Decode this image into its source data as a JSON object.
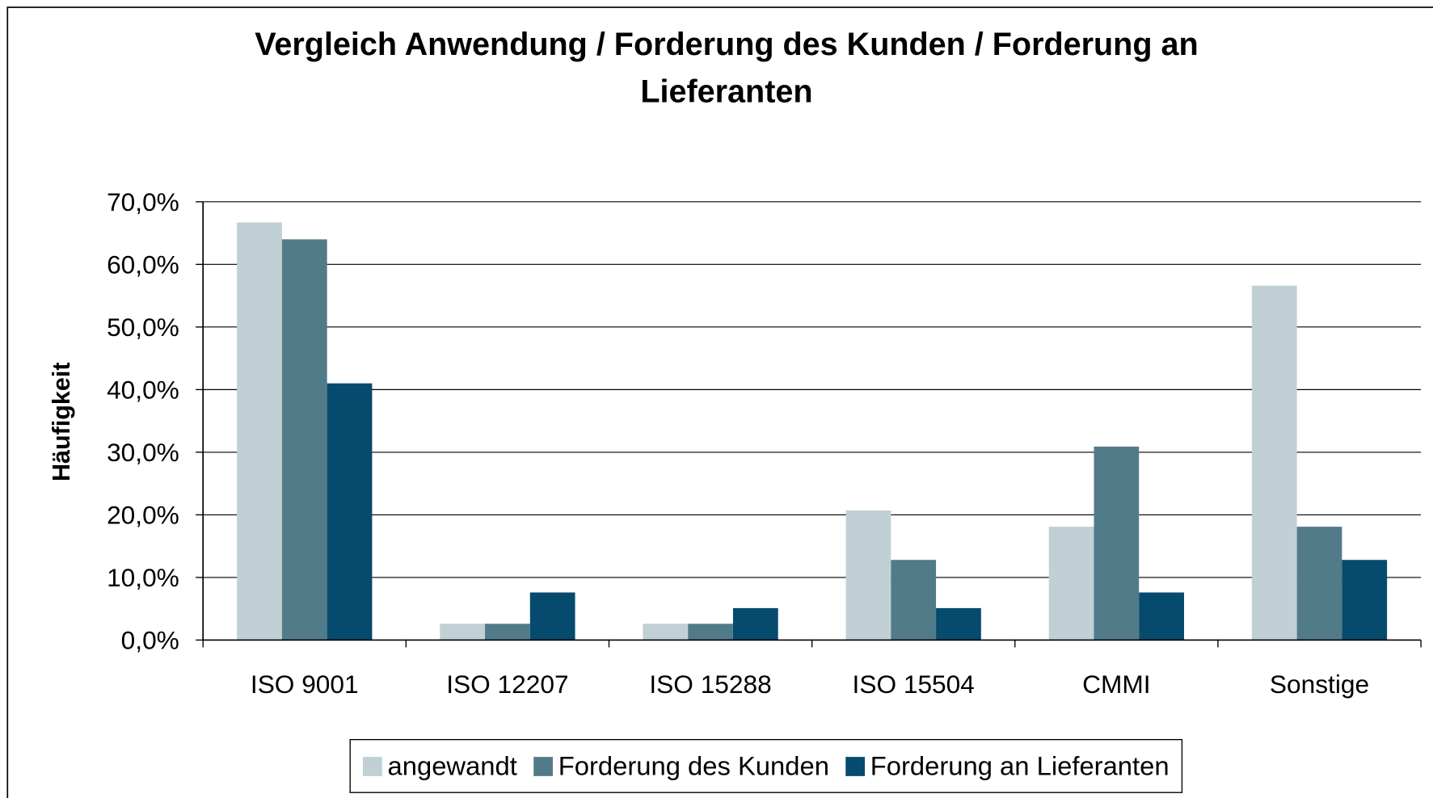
{
  "chart_data": {
    "type": "bar",
    "title": "Vergleich Anwendung / Forderung des Kunden / Forderung an Lieferanten",
    "y_label": "Häufigkeit",
    "categories": [
      "ISO 9001",
      "ISO 12207",
      "ISO 15288",
      "ISO 15504",
      "CMMI",
      "Sonstige"
    ],
    "series": [
      {
        "name": "angewandt",
        "color": "#c0d0d4",
        "values": [
          66.7,
          2.6,
          2.6,
          20.7,
          18.1,
          56.6
        ]
      },
      {
        "name": "Forderung des Kunden",
        "color": "#527b89",
        "values": [
          64.0,
          2.6,
          2.6,
          12.8,
          30.9,
          18.1
        ]
      },
      {
        "name": "Forderung an Lieferanten",
        "color": "#064a6e",
        "values": [
          41.0,
          7.6,
          5.1,
          5.1,
          7.6,
          12.8
        ]
      }
    ],
    "ylim": [
      0,
      70
    ],
    "yticks": [
      {
        "value": 0,
        "label": "0,0%"
      },
      {
        "value": 10,
        "label": "10,0%"
      },
      {
        "value": 20,
        "label": "20,0%"
      },
      {
        "value": 30,
        "label": "30,0%"
      },
      {
        "value": 40,
        "label": "40,0%"
      },
      {
        "value": 50,
        "label": "50,0%"
      },
      {
        "value": 60,
        "label": "60,0%"
      },
      {
        "value": 70,
        "label": "70,0%"
      }
    ],
    "grid": true,
    "legend": "bottom"
  }
}
